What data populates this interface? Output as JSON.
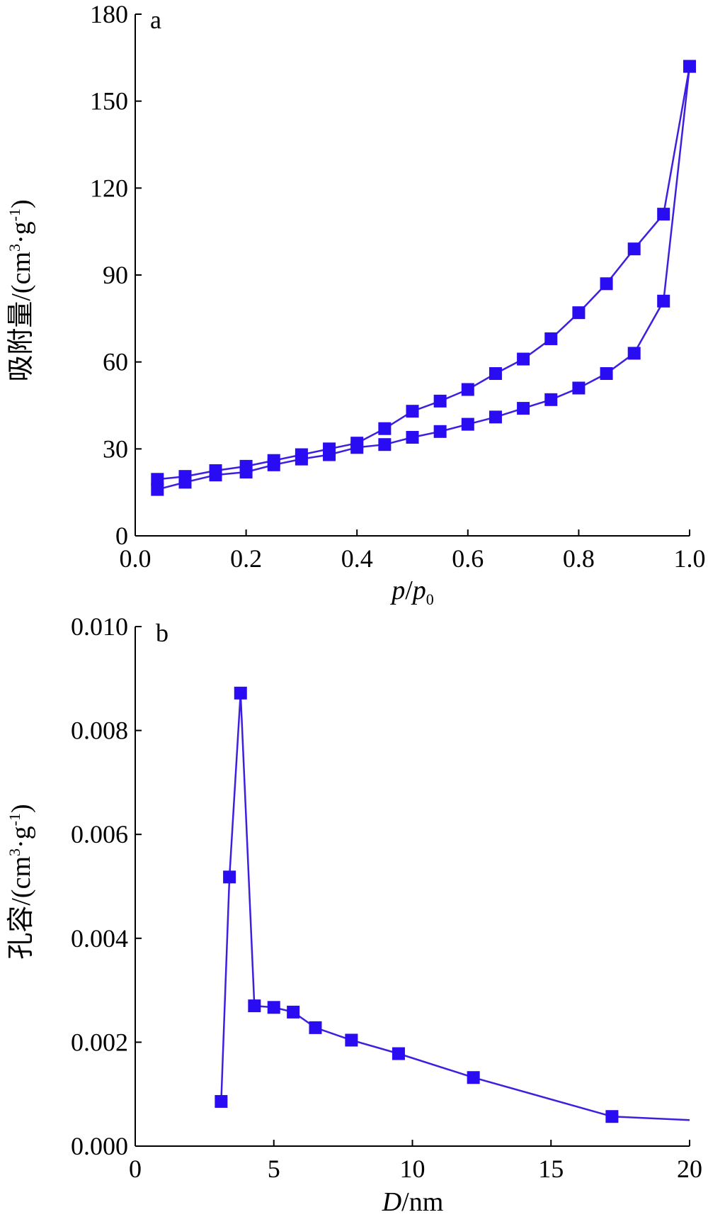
{
  "figure": {
    "accent_color": "#2a0cf2",
    "line_color": "#3d1fe0"
  },
  "chart_data": [
    {
      "type": "line",
      "panel_label": "a",
      "xlabel_italic": "p",
      "xlabel_sep": "/",
      "xlabel_italic2": "p",
      "xlabel_sub": "0",
      "ylabel_main": "吸附量/(cm",
      "ylabel_sup1": "3",
      "ylabel_mid": "·g",
      "ylabel_sup2": "-1",
      "ylabel_end": ")",
      "xlim": [
        0.0,
        1.0
      ],
      "ylim": [
        0,
        180
      ],
      "xticks": [
        0.0,
        0.2,
        0.4,
        0.6,
        0.8,
        1.0
      ],
      "xtick_labels": [
        "0.0",
        "0.2",
        "0.4",
        "0.6",
        "0.8",
        "1.0"
      ],
      "yticks": [
        0,
        30,
        60,
        90,
        120,
        150,
        180
      ],
      "ytick_labels": [
        "0",
        "30",
        "60",
        "90",
        "120",
        "150",
        "180"
      ],
      "grid": false,
      "series": [
        {
          "x": [
            0.04,
            0.09,
            0.145,
            0.2,
            0.25,
            0.3,
            0.35,
            0.4,
            0.45,
            0.5,
            0.55,
            0.6,
            0.65,
            0.7,
            0.75,
            0.8,
            0.85,
            0.9,
            0.953,
            1.0
          ],
          "y": [
            16,
            18.5,
            21,
            22,
            24.5,
            26.5,
            28,
            30.5,
            31.5,
            34,
            36,
            38.5,
            41,
            44,
            47,
            51,
            56,
            63,
            81,
            162
          ]
        },
        {
          "x": [
            1.0,
            0.953,
            0.9,
            0.85,
            0.8,
            0.75,
            0.7,
            0.65,
            0.6,
            0.55,
            0.5,
            0.45,
            0.4,
            0.35,
            0.3,
            0.25,
            0.2,
            0.145,
            0.09,
            0.04
          ],
          "y": [
            162,
            111,
            99,
            87,
            77,
            68,
            61,
            56,
            50.5,
            46.5,
            43,
            37,
            32,
            30,
            28,
            26,
            24,
            22.5,
            20.5,
            19.5
          ]
        }
      ]
    },
    {
      "type": "line",
      "panel_label": "b",
      "xlabel_italic": "D",
      "xlabel_rest": "/nm",
      "ylabel_main": "孔容/(cm",
      "ylabel_sup1": "3",
      "ylabel_mid": "·g",
      "ylabel_sup2": "-1",
      "ylabel_end": ")",
      "xlim": [
        0,
        20
      ],
      "ylim": [
        0.0,
        0.01
      ],
      "xticks": [
        0,
        5,
        10,
        15,
        20
      ],
      "xtick_labels": [
        "0",
        "5",
        "10",
        "15",
        "20"
      ],
      "yticks": [
        0.0,
        0.002,
        0.004,
        0.006,
        0.008,
        0.01
      ],
      "ytick_labels": [
        "0.000",
        "0.002",
        "0.004",
        "0.006",
        "0.008",
        "0.010"
      ],
      "grid": false,
      "series": [
        {
          "x": [
            3.1,
            3.4,
            3.8,
            4.3,
            5.0,
            5.7,
            6.5,
            7.8,
            9.5,
            12.2,
            17.2
          ],
          "y": [
            0.00086,
            0.00518,
            0.00872,
            0.0027,
            0.00267,
            0.00258,
            0.00228,
            0.00204,
            0.00178,
            0.00132,
            0.00057
          ]
        }
      ],
      "tail": {
        "x": [
          17.2,
          20.0
        ],
        "y": [
          0.00057,
          0.0005
        ]
      }
    }
  ]
}
